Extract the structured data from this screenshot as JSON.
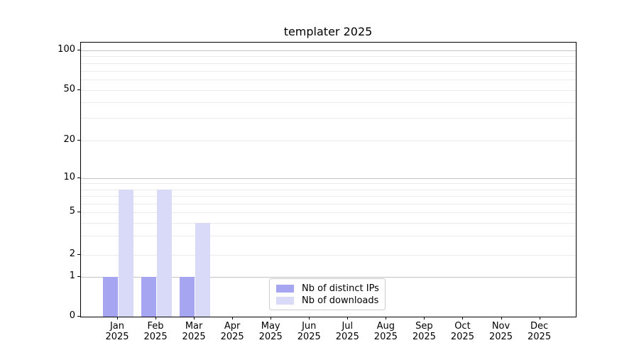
{
  "figure": {
    "title": "templater 2025"
  },
  "chart_data": {
    "type": "bar",
    "title": "templater 2025",
    "xlabel": "",
    "ylabel": "",
    "year": "2025",
    "months": [
      "Jan",
      "Feb",
      "Mar",
      "Apr",
      "May",
      "Jun",
      "Jul",
      "Aug",
      "Sep",
      "Oct",
      "Nov",
      "Dec"
    ],
    "categories": [
      "Jan 2025",
      "Feb 2025",
      "Mar 2025",
      "Apr 2025",
      "May 2025",
      "Jun 2025",
      "Jul 2025",
      "Aug 2025",
      "Sep 2025",
      "Oct 2025",
      "Nov 2025",
      "Dec 2025"
    ],
    "series": [
      {
        "name": "Nb of distinct IPs",
        "color": "#a5a5f1",
        "values": [
          1,
          1,
          1,
          0,
          0,
          0,
          0,
          0,
          0,
          0,
          0,
          0
        ]
      },
      {
        "name": "Nb of downloads",
        "color": "#d9d9f8",
        "values": [
          8,
          8,
          4,
          0,
          0,
          0,
          0,
          0,
          0,
          0,
          0,
          0
        ]
      }
    ],
    "yscale": "symlog",
    "ylim": [
      0,
      100
    ],
    "yticks": [
      0,
      1,
      2,
      5,
      10,
      20,
      50,
      100
    ],
    "minor_gridline_values": [
      2,
      3,
      4,
      5,
      6,
      7,
      8,
      9,
      20,
      30,
      40,
      50,
      60,
      70,
      80,
      90
    ],
    "major_gridline_values": [
      1,
      10,
      100
    ],
    "grid": true,
    "legend_position": "lower center",
    "colors": {
      "major_grid": "#c3c3c3",
      "minor_grid": "#ebebeb",
      "axis": "#000000",
      "legend_border": "#cccccc"
    }
  }
}
